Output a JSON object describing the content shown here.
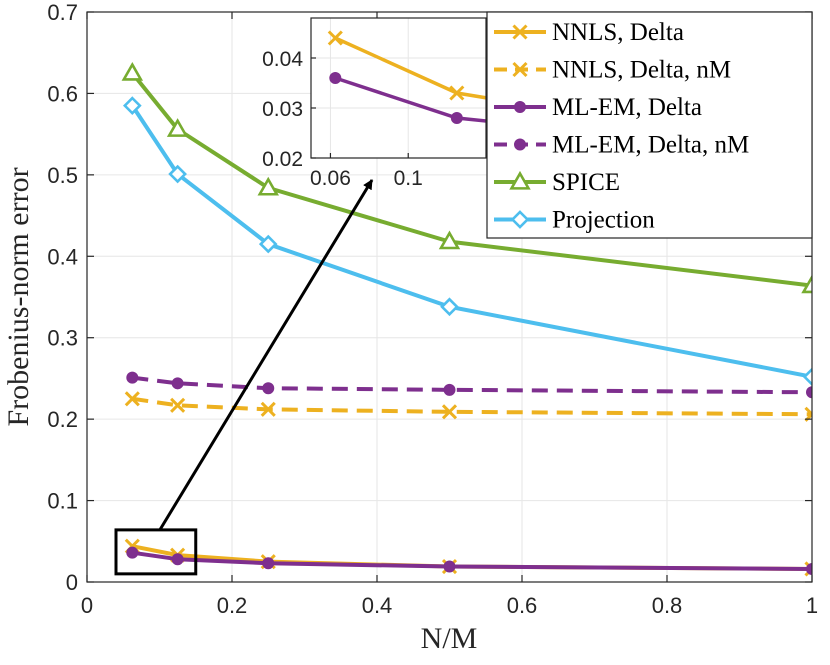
{
  "chart_data": {
    "type": "line",
    "title": "",
    "xlabel": "N/M",
    "ylabel": "Frobenius-norm error",
    "xlim": [
      0,
      1
    ],
    "ylim": [
      0,
      0.7
    ],
    "xticks": [
      0,
      0.2,
      0.4,
      0.6,
      0.8,
      1
    ],
    "xtick_labels": [
      "0",
      "0.2",
      "0.4",
      "0.6",
      "0.8",
      "1"
    ],
    "yticks": [
      0,
      0.1,
      0.2,
      0.3,
      0.4,
      0.5,
      0.6,
      0.7
    ],
    "ytick_labels": [
      "0",
      "0.1",
      "0.2",
      "0.3",
      "0.4",
      "0.5",
      "0.6",
      "0.7"
    ],
    "grid": true,
    "legend_position": "top-right",
    "x": [
      0.0625,
      0.125,
      0.25,
      0.5,
      1
    ],
    "series": [
      {
        "name": "NNLS, Delta",
        "color": "#EDB120",
        "dash": "solid",
        "marker": "x",
        "values": [
          0.044,
          0.033,
          0.025,
          0.019,
          0.016
        ]
      },
      {
        "name": "NNLS, Delta, nM",
        "color": "#EDB120",
        "dash": "dashed",
        "marker": "x",
        "values": [
          0.225,
          0.217,
          0.212,
          0.209,
          0.206
        ]
      },
      {
        "name": "ML-EM, Delta",
        "color": "#7E2F8E",
        "dash": "solid",
        "marker": "circle",
        "values": [
          0.036,
          0.028,
          0.023,
          0.019,
          0.016
        ]
      },
      {
        "name": "ML-EM, Delta, nM",
        "color": "#7E2F8E",
        "dash": "dashed",
        "marker": "circle",
        "values": [
          0.251,
          0.244,
          0.238,
          0.236,
          0.233
        ]
      },
      {
        "name": "SPICE",
        "color": "#77AC30",
        "dash": "solid",
        "marker": "triangle",
        "values": [
          0.625,
          0.556,
          0.484,
          0.418,
          0.364
        ]
      },
      {
        "name": "Projection",
        "color": "#4DBEEE",
        "dash": "solid",
        "marker": "diamond",
        "values": [
          0.585,
          0.501,
          0.415,
          0.338,
          0.252
        ]
      }
    ],
    "inset": {
      "xlim": [
        0.05,
        0.14
      ],
      "ylim": [
        0.02,
        0.048
      ],
      "xticks": [
        0.06,
        0.1
      ],
      "xtick_labels": [
        "0.06",
        "0.1"
      ],
      "yticks": [
        0.02,
        0.03,
        0.04
      ],
      "ytick_labels": [
        "0.02",
        "0.03",
        "0.04"
      ],
      "zoom_region": {
        "x": [
          0.04,
          0.15
        ],
        "y": [
          0.01,
          0.064
        ]
      }
    }
  }
}
